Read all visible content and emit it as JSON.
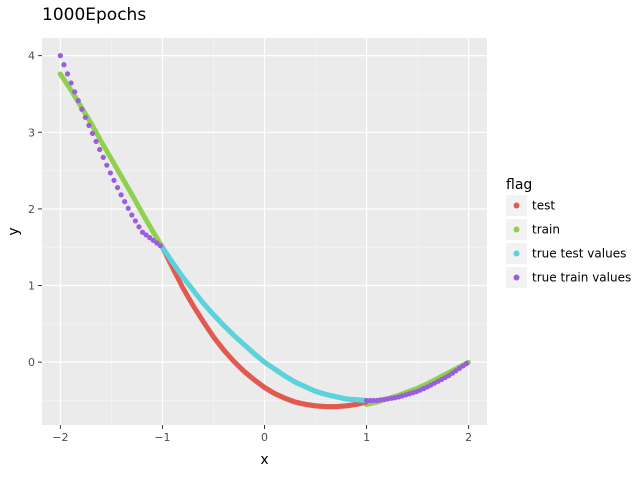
{
  "chart_data": {
    "type": "scatter",
    "title": "1000Epochs",
    "xlabel": "x",
    "ylabel": "y",
    "xlim": [
      -2.18,
      2.18
    ],
    "ylim": [
      -0.82,
      4.23
    ],
    "x_ticks": [
      -2,
      -1,
      0,
      1,
      2
    ],
    "y_ticks": [
      0,
      1,
      2,
      3,
      4
    ],
    "grid": true,
    "legend": {
      "title": "flag",
      "position": "right"
    },
    "series": [
      {
        "name": "test",
        "color": "#e05a50",
        "x_range": [
          -1,
          1
        ],
        "x": [
          -1.0,
          -0.9,
          -0.8,
          -0.7,
          -0.6,
          -0.5,
          -0.4,
          -0.3,
          -0.2,
          -0.1,
          0.0,
          0.1,
          0.2,
          0.3,
          0.4,
          0.5,
          0.6,
          0.7,
          0.8,
          0.9,
          1.0
        ],
        "y": [
          1.5,
          1.23,
          0.97,
          0.74,
          0.53,
          0.33,
          0.16,
          0.01,
          -0.12,
          -0.23,
          -0.33,
          -0.41,
          -0.47,
          -0.52,
          -0.55,
          -0.57,
          -0.58,
          -0.58,
          -0.57,
          -0.55,
          -0.52
        ]
      },
      {
        "name": "train",
        "color": "#8fd14f",
        "x_range": [
          -2,
          2
        ],
        "x": [
          -2.0,
          -1.9,
          -1.8,
          -1.7,
          -1.6,
          -1.5,
          -1.4,
          -1.3,
          -1.2,
          -1.1,
          -1.0,
          1.0,
          1.1,
          1.2,
          1.3,
          1.4,
          1.5,
          1.6,
          1.7,
          1.8,
          1.9,
          2.0
        ],
        "y": [
          3.76,
          3.56,
          3.34,
          3.12,
          2.88,
          2.65,
          2.42,
          2.19,
          1.95,
          1.72,
          1.5,
          -0.55,
          -0.52,
          -0.48,
          -0.44,
          -0.39,
          -0.34,
          -0.28,
          -0.21,
          -0.14,
          -0.07,
          0.0
        ]
      },
      {
        "name": "true test values",
        "color": "#5bd2dc",
        "x_range": [
          -1,
          1
        ],
        "x": [
          -1.0,
          -0.9,
          -0.8,
          -0.7,
          -0.6,
          -0.5,
          -0.4,
          -0.3,
          -0.2,
          -0.1,
          0.0,
          0.1,
          0.2,
          0.3,
          0.4,
          0.5,
          0.6,
          0.7,
          0.8,
          0.9,
          1.0
        ],
        "y": [
          1.5,
          1.3,
          1.11,
          0.94,
          0.77,
          0.62,
          0.48,
          0.35,
          0.23,
          0.11,
          0.0,
          -0.09,
          -0.18,
          -0.26,
          -0.32,
          -0.38,
          -0.42,
          -0.45,
          -0.48,
          -0.49,
          -0.5
        ]
      },
      {
        "name": "true train values",
        "color": "#9b5de0",
        "x_range": [
          -2,
          2
        ],
        "x": [
          -2.0,
          -1.9,
          -1.8,
          -1.7,
          -1.6,
          -1.5,
          -1.4,
          -1.3,
          -1.2,
          -1.1,
          -1.0,
          1.0,
          1.1,
          1.2,
          1.3,
          1.4,
          1.5,
          1.6,
          1.7,
          1.8,
          1.9,
          2.0
        ],
        "y": [
          4.0,
          3.66,
          3.33,
          3.03,
          2.73,
          2.44,
          2.17,
          1.92,
          1.7,
          1.6,
          1.5,
          -0.5,
          -0.5,
          -0.48,
          -0.46,
          -0.42,
          -0.38,
          -0.32,
          -0.25,
          -0.18,
          -0.09,
          0.0
        ]
      }
    ]
  }
}
